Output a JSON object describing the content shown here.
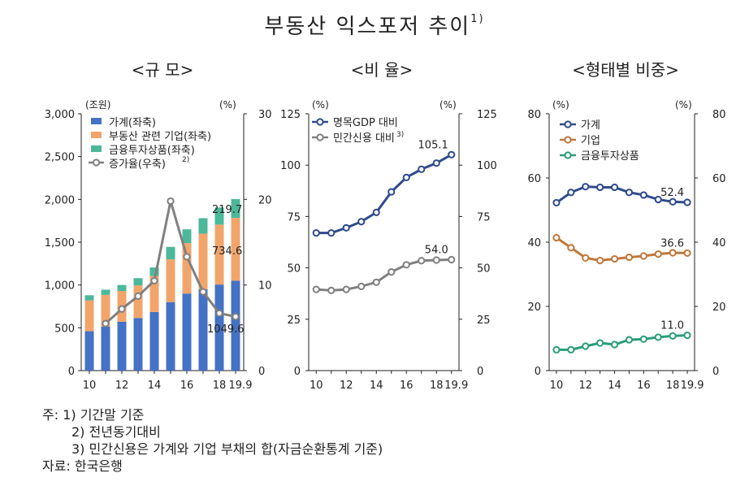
{
  "title": {
    "text": "부동산 익스포저 추이",
    "sup": "1)"
  },
  "panels": {
    "scale": "<규 모>",
    "ratio": "<비 율>",
    "share": "<형태별 비중>"
  },
  "chart_data": [
    {
      "id": "scale",
      "type": "bar",
      "title": "<규 모>",
      "left_unit": "(조원)",
      "right_unit": "(%)",
      "categories": [
        "10",
        "11",
        "12",
        "13",
        "14",
        "15",
        "16",
        "17",
        "18",
        "19.9"
      ],
      "x_tick_labels": [
        "10",
        "12",
        "14",
        "16",
        "18",
        "19.9"
      ],
      "ylim_left": [
        0,
        3000
      ],
      "left_ticks": [
        "0",
        "500",
        "1,000",
        "1,500",
        "2,000",
        "2,500",
        "3,000"
      ],
      "ylim_right": [
        0,
        30
      ],
      "right_ticks": [
        "0",
        "10",
        "20",
        "30"
      ],
      "series": [
        {
          "name": "가계(좌축)",
          "color": "#4472c4",
          "values": [
            460,
            515,
            570,
            615,
            685,
            800,
            900,
            950,
            1005,
            1049.6
          ]
        },
        {
          "name": "부동산 관련 기업(좌축)",
          "color": "#f2a56b",
          "values": [
            360,
            370,
            360,
            380,
            420,
            500,
            590,
            650,
            700,
            734.6
          ]
        },
        {
          "name": "금융투자상품(좌축)",
          "color": "#4bb89a",
          "values": [
            60,
            60,
            70,
            85,
            100,
            145,
            160,
            180,
            200,
            219.7
          ]
        },
        {
          "name": "증가율(우축)",
          "color": "#808080",
          "axis": "right",
          "values": [
            null,
            5.5,
            7.2,
            8.7,
            10.5,
            19.8,
            13.3,
            9.2,
            6.7,
            6.3
          ]
        }
      ],
      "legend_sup": "2)",
      "data_labels": [
        "219.7",
        "734.6",
        "1049.6"
      ]
    },
    {
      "id": "ratio",
      "type": "line",
      "title": "<비 율>",
      "left_unit": "(%)",
      "right_unit": "(%)",
      "categories": [
        "10",
        "11",
        "12",
        "13",
        "14",
        "15",
        "16",
        "17",
        "18",
        "19.9"
      ],
      "x_tick_labels": [
        "10",
        "12",
        "14",
        "16",
        "18",
        "19.9"
      ],
      "ylim": [
        0,
        125
      ],
      "ticks": [
        "0",
        "25",
        "50",
        "75",
        "100",
        "125"
      ],
      "series": [
        {
          "name": "명목GDP 대비",
          "color": "#2f4b8c",
          "values": [
            67,
            67,
            69.5,
            72.5,
            77,
            87,
            94,
            98,
            101,
            105.1
          ]
        },
        {
          "name": "민간신용 대비",
          "sup": "3)",
          "color": "#808080",
          "values": [
            39.5,
            39,
            39.5,
            41,
            43,
            48,
            51.5,
            53.5,
            53.8,
            54.0
          ]
        }
      ],
      "data_labels": [
        "105.1",
        "54.0"
      ]
    },
    {
      "id": "share",
      "type": "line",
      "title": "<형태별 비중>",
      "left_unit": "(%)",
      "right_unit": "(%)",
      "categories": [
        "10",
        "11",
        "12",
        "13",
        "14",
        "15",
        "16",
        "17",
        "18",
        "19.9"
      ],
      "x_tick_labels": [
        "10",
        "12",
        "14",
        "16",
        "18",
        "19.9"
      ],
      "ylim": [
        0,
        80
      ],
      "ticks": [
        "0",
        "20",
        "40",
        "60",
        "80"
      ],
      "series": [
        {
          "name": "가계",
          "color": "#2f4b8c",
          "values": [
            52.3,
            55.5,
            57.3,
            57.1,
            57.1,
            55.5,
            54.7,
            53.3,
            52.6,
            52.4
          ]
        },
        {
          "name": "기업",
          "color": "#c0783a",
          "values": [
            41.4,
            38.3,
            35.1,
            34.3,
            34.8,
            35.3,
            35.7,
            36.3,
            36.7,
            36.6
          ]
        },
        {
          "name": "금융투자상품",
          "color": "#2a9d7a",
          "values": [
            6.5,
            6.5,
            7.6,
            8.6,
            8.1,
            9.6,
            9.8,
            10.4,
            10.8,
            11.0
          ]
        }
      ],
      "data_labels": [
        "52.4",
        "36.6",
        "11.0"
      ]
    }
  ],
  "notes": {
    "n1": "주:  1)  기간말 기준",
    "n2": "2)  전년동기대비",
    "n3": "3)  민간신용은 가계와 기업 부채의 합(자금순환통계 기준)",
    "source": "자료:  한국은행"
  }
}
